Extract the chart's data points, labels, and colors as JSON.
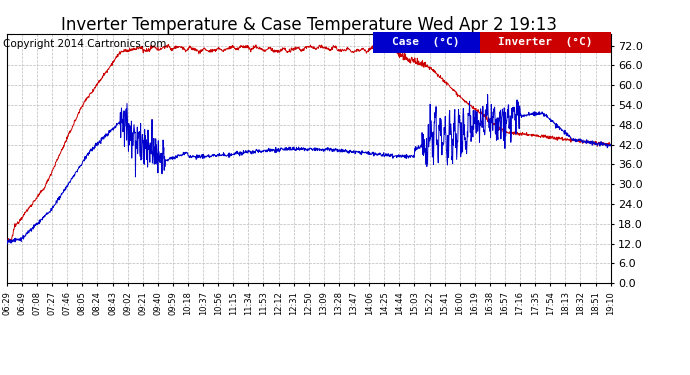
{
  "title": "Inverter Temperature & Case Temperature Wed Apr 2 19:13",
  "copyright": "Copyright 2014 Cartronics.com",
  "ylim": [
    0.0,
    75.6
  ],
  "yticks": [
    0.0,
    6.0,
    12.0,
    18.0,
    24.0,
    30.0,
    36.0,
    42.0,
    48.0,
    54.0,
    60.0,
    66.0,
    72.0
  ],
  "ytick_labels": [
    "0.0",
    "6.0",
    "12.0",
    "18.0",
    "24.0",
    "30.0",
    "36.0",
    "42.0",
    "48.0",
    "54.0",
    "60.0",
    "66.0",
    "72.0"
  ],
  "xtick_labels": [
    "06:29",
    "06:49",
    "07:08",
    "07:27",
    "07:46",
    "08:05",
    "08:24",
    "08:43",
    "09:02",
    "09:21",
    "09:40",
    "09:59",
    "10:18",
    "10:37",
    "10:56",
    "11:15",
    "11:34",
    "11:53",
    "12:12",
    "12:31",
    "12:50",
    "13:09",
    "13:28",
    "13:47",
    "14:06",
    "14:25",
    "14:44",
    "15:03",
    "15:22",
    "15:41",
    "16:00",
    "16:19",
    "16:38",
    "16:57",
    "17:16",
    "17:35",
    "17:54",
    "18:13",
    "18:32",
    "18:51",
    "19:10"
  ],
  "legend_case_label": "Case  (°C)",
  "legend_inverter_label": "Inverter  (°C)",
  "case_color": "#0000cc",
  "inverter_color": "#cc0000",
  "bg_color": "#ffffff",
  "plot_bg_color": "#ffffff",
  "grid_color": "#bbbbbb",
  "title_fontsize": 12,
  "tick_fontsize": 8,
  "copyright_fontsize": 7.5
}
